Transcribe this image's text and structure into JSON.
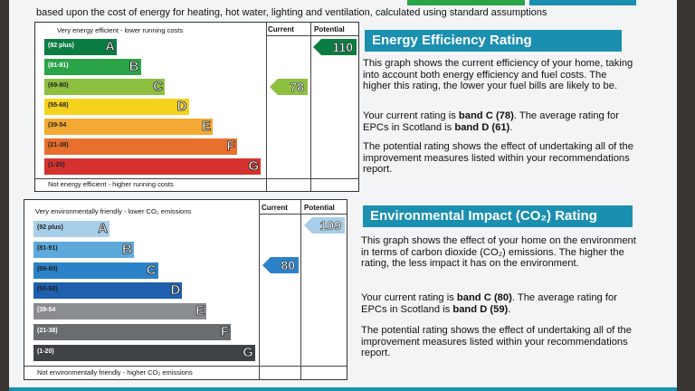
{
  "intro": "based upon the cost of energy for heating, hot water, lighting and ventilation, calculated using standard assumptions",
  "accent": "#1b8fb0",
  "energy": {
    "top_caption": "Very energy efficient - lower running costs",
    "bottom_caption": "Not energy efficient - higher running costs",
    "current_header": "Current",
    "potential_header": "Potential",
    "current_value": "78",
    "potential_value": "110",
    "bands": [
      {
        "range": "(92 plus)",
        "letter": "A",
        "color": "#0b7d43"
      },
      {
        "range": "(81-91)",
        "letter": "B",
        "color": "#2aa447"
      },
      {
        "range": "(69-80)",
        "letter": "C",
        "color": "#8dc03f"
      },
      {
        "range": "(55-68)",
        "letter": "D",
        "color": "#f5d31c"
      },
      {
        "range": "(39-54",
        "letter": "E",
        "color": "#f3a933"
      },
      {
        "range": "(21-38)",
        "letter": "F",
        "color": "#e96f2c"
      },
      {
        "range": "(1-20)",
        "letter": "G",
        "color": "#d5322f"
      }
    ],
    "title": "Energy Efficiency Rating",
    "para1": "This graph shows the current efficiency of your home, taking into account both energy efficiency and fuel costs. The higher this rating, the lower your fuel bills are likely to be.",
    "para2_a": "Your current rating is ",
    "para2_b": "band C (78)",
    "para2_c": ". The average rating for EPCs in Scotland is ",
    "para2_d": "band D (61)",
    "para2_e": ".",
    "para3": "The potential rating shows the effect of undertaking all of the improvement measures listed within your recommendations report."
  },
  "environment": {
    "top_caption": "Very environmentally friendly - lower CO₂ emissions",
    "bottom_caption": "Not environmentally friendly - higher CO₂ emissions",
    "current_header": "Current",
    "potential_header": "Potential",
    "current_value": "80",
    "potential_value": "109",
    "bands": [
      {
        "range": "(92 plus)",
        "letter": "A",
        "color": "#a8cfe8"
      },
      {
        "range": "(81-91)",
        "letter": "B",
        "color": "#5ea9dc"
      },
      {
        "range": "(69-80)",
        "letter": "C",
        "color": "#2b82c9"
      },
      {
        "range": "(55-68)",
        "letter": "D",
        "color": "#1f5fad"
      },
      {
        "range": "(39-54",
        "letter": "E",
        "color": "#8a8d8f"
      },
      {
        "range": "(21-38)",
        "letter": "F",
        "color": "#6a6d70"
      },
      {
        "range": "(1-20)",
        "letter": "G",
        "color": "#404346"
      }
    ],
    "title": "Environmental Impact (CO₂) Rating",
    "para1": "This graph shows the effect of your home on the environment in terms of carbon dioxide (CO₂) emissions. The higher the rating, the less impact it has on the environment.",
    "para2_a": "Your current rating is ",
    "para2_b": "band C (80)",
    "para2_c": ". The average rating for EPCs in Scotland is ",
    "para2_d": "band D (59)",
    "para2_e": ".",
    "para3": "The potential rating shows the effect of undertaking all of the improvement measures listed within your recommendations report."
  }
}
